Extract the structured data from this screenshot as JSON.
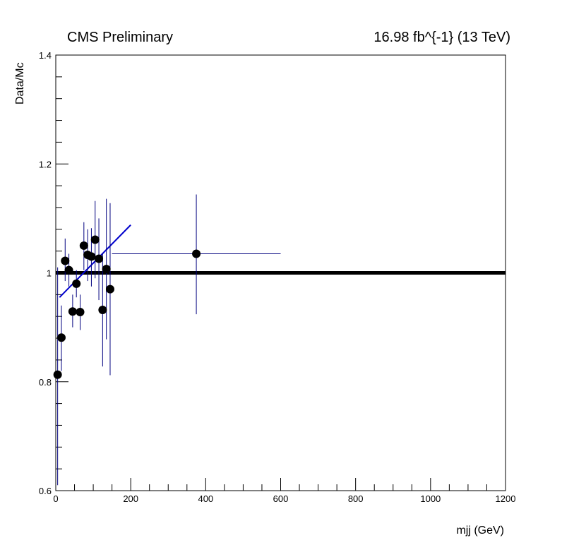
{
  "header": {
    "left": "CMS Preliminary",
    "right": "16.98 fb^{-1} (13 TeV)"
  },
  "colors": {
    "frame": "#000000",
    "markers": "#000000",
    "error_bars": "#00007f",
    "fit_line": "#0000cc",
    "reference_line": "#000000"
  },
  "chart_data": {
    "type": "scatter",
    "xlabel": "mjj (GeV)",
    "ylabel": "Data/Mc",
    "xlim": [
      0,
      1200
    ],
    "ylim": [
      0.6,
      1.4
    ],
    "x_ticks": [
      0,
      200,
      400,
      600,
      800,
      1000,
      1200
    ],
    "y_ticks": [
      0.6,
      0.8,
      1,
      1.2,
      1.4
    ],
    "x_tick_labels": [
      "0",
      "200",
      "400",
      "600",
      "800",
      "1000",
      "1200"
    ],
    "y_tick_labels": [
      "0.6",
      "0.8",
      "1",
      "1.2",
      "1.4"
    ],
    "grid": false,
    "series": [
      {
        "marker": "circle",
        "points": [
          {
            "x": 5,
            "y": 0.813,
            "xerr": 5,
            "ylo": 0.61,
            "yhi": 1.01
          },
          {
            "x": 15,
            "y": 0.881,
            "xerr": 5,
            "ylo": 0.82,
            "yhi": 0.94
          },
          {
            "x": 25,
            "y": 1.022,
            "xerr": 5,
            "ylo": 0.985,
            "yhi": 1.063
          },
          {
            "x": 35,
            "y": 1.005,
            "xerr": 5,
            "ylo": 0.975,
            "yhi": 1.035
          },
          {
            "x": 45,
            "y": 0.929,
            "xerr": 5,
            "ylo": 0.9,
            "yhi": 0.96
          },
          {
            "x": 55,
            "y": 0.98,
            "xerr": 5,
            "ylo": 0.955,
            "yhi": 1.005
          },
          {
            "x": 65,
            "y": 0.928,
            "xerr": 5,
            "ylo": 0.895,
            "yhi": 0.96
          },
          {
            "x": 75,
            "y": 1.05,
            "xerr": 5,
            "ylo": 1.005,
            "yhi": 1.093
          },
          {
            "x": 85,
            "y": 1.033,
            "xerr": 5,
            "ylo": 0.985,
            "yhi": 1.08
          },
          {
            "x": 95,
            "y": 1.03,
            "xerr": 5,
            "ylo": 0.975,
            "yhi": 1.082
          },
          {
            "x": 105,
            "y": 1.061,
            "xerr": 5,
            "ylo": 0.99,
            "yhi": 1.132
          },
          {
            "x": 115,
            "y": 1.026,
            "xerr": 5,
            "ylo": 0.95,
            "yhi": 1.1
          },
          {
            "x": 125,
            "y": 0.932,
            "xerr": 5,
            "ylo": 0.828,
            "yhi": 1.036
          },
          {
            "x": 135,
            "y": 1.007,
            "xerr": 5,
            "ylo": 0.878,
            "yhi": 1.136
          },
          {
            "x": 145,
            "y": 0.97,
            "xerr": 5,
            "ylo": 0.812,
            "yhi": 1.128
          },
          {
            "x": 375,
            "y": 1.035,
            "xerr": 225,
            "ylo": 0.924,
            "yhi": 1.144
          }
        ]
      }
    ],
    "fit": {
      "type": "line",
      "x": [
        10,
        200
      ],
      "y": [
        0.955,
        1.088
      ]
    },
    "reference_line": {
      "y": 1,
      "xmin": 0,
      "xmax": 1200
    }
  }
}
